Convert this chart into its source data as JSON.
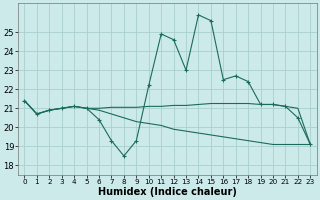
{
  "xlabel": "Humidex (Indice chaleur)",
  "xlim": [
    -0.5,
    23.5
  ],
  "ylim": [
    17.5,
    26.5
  ],
  "yticks": [
    18,
    19,
    20,
    21,
    22,
    23,
    24,
    25
  ],
  "xticks": [
    0,
    1,
    2,
    3,
    4,
    5,
    6,
    7,
    8,
    9,
    10,
    11,
    12,
    13,
    14,
    15,
    16,
    17,
    18,
    19,
    20,
    21,
    22,
    23
  ],
  "background_color": "#cceaea",
  "grid_color": "#aacece",
  "line_color": "#1a6b5e",
  "line1_x": [
    0,
    1,
    2,
    3,
    4,
    5,
    6,
    7,
    8,
    9,
    10,
    11,
    12,
    13,
    14,
    15,
    16,
    17,
    18,
    19,
    20,
    21,
    22,
    23
  ],
  "line1_y": [
    21.4,
    20.7,
    20.9,
    21.0,
    21.1,
    21.0,
    20.4,
    19.3,
    18.5,
    19.3,
    22.2,
    24.9,
    24.6,
    23.0,
    25.9,
    25.6,
    22.5,
    22.7,
    22.4,
    21.2,
    21.2,
    21.1,
    20.5,
    19.1
  ],
  "line2_x": [
    0,
    1,
    2,
    3,
    4,
    5,
    6,
    7,
    8,
    9,
    10,
    11,
    12,
    13,
    14,
    15,
    16,
    17,
    18,
    19,
    20,
    21,
    22,
    23
  ],
  "line2_y": [
    21.4,
    20.7,
    20.9,
    21.0,
    21.1,
    21.0,
    21.0,
    21.05,
    21.05,
    21.05,
    21.1,
    21.1,
    21.15,
    21.15,
    21.2,
    21.25,
    21.25,
    21.25,
    21.25,
    21.2,
    21.2,
    21.1,
    21.0,
    19.1
  ],
  "line3_x": [
    0,
    1,
    2,
    3,
    4,
    5,
    6,
    7,
    8,
    9,
    10,
    11,
    12,
    13,
    14,
    15,
    16,
    17,
    18,
    19,
    20,
    21,
    22,
    23
  ],
  "line3_y": [
    21.4,
    20.7,
    20.9,
    21.0,
    21.1,
    21.0,
    20.9,
    20.7,
    20.5,
    20.3,
    20.2,
    20.1,
    19.9,
    19.8,
    19.7,
    19.6,
    19.5,
    19.4,
    19.3,
    19.2,
    19.1,
    19.1,
    19.1,
    19.1
  ]
}
